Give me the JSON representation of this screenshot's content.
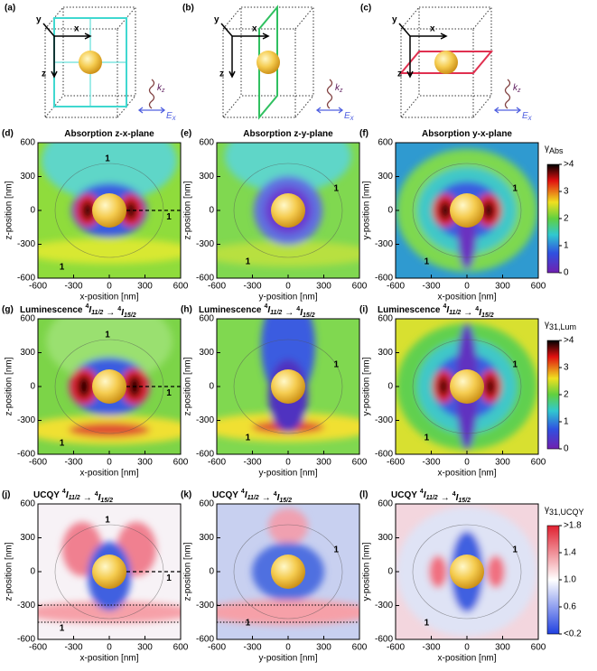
{
  "schematics": [
    {
      "label": "(a)",
      "axis_x": "x",
      "axis_y": "y",
      "axis_z": "z",
      "k": "k",
      "k_sub": "z",
      "e": "E",
      "e_sub": "x"
    },
    {
      "label": "(b)",
      "axis_x": "x",
      "axis_y": "y",
      "axis_z": "z",
      "k": "k",
      "k_sub": "z",
      "e": "E",
      "e_sub": "x"
    },
    {
      "label": "(c)",
      "axis_x": "x",
      "axis_y": "y",
      "axis_z": "z",
      "k": "k",
      "k_sub": "z",
      "e": "E",
      "e_sub": "x"
    }
  ],
  "ticks": [
    "-600",
    "-300",
    "0",
    "300",
    "600"
  ],
  "rows": [
    {
      "colorbar": {
        "symbol": "γ",
        "sub": "Abs",
        "ticks": [
          ">4",
          "3",
          "2",
          "1",
          "0"
        ]
      },
      "panels": [
        {
          "label": "(d)",
          "title": "Absorption z-x-plane",
          "xlabel": "x-position [nm]",
          "ylabel": "z-position [nm]",
          "contours": [
            "1",
            "1",
            "1"
          ]
        },
        {
          "label": "(e)",
          "title": "Absorption z-y-plane",
          "xlabel": "y-position [nm]",
          "ylabel": "z-position [nm]",
          "contours": [
            "1",
            "1"
          ]
        },
        {
          "label": "(f)",
          "title": "Absorption y-x-plane",
          "xlabel": "x-position [nm]",
          "ylabel": "y-position [nm]",
          "contours": [
            "1",
            "1"
          ]
        }
      ]
    },
    {
      "colorbar": {
        "symbol": "γ",
        "sub": "31,Lum",
        "ticks": [
          ">4",
          "3",
          "2",
          "1",
          "0"
        ]
      },
      "panels": [
        {
          "label": "(g)",
          "title": "Luminescence",
          "from": {
            "sup": "4",
            "sym": "I",
            "sub": "11/2"
          },
          "arrow": "→",
          "to": {
            "sup": "4",
            "sym": "I",
            "sub": "15/2"
          },
          "xlabel": "x-position [nm]",
          "ylabel": "z-position [nm]",
          "contours": [
            "1",
            "1",
            "1"
          ]
        },
        {
          "label": "(h)",
          "title": "Luminescence",
          "from": {
            "sup": "4",
            "sym": "I",
            "sub": "11/2"
          },
          "arrow": "→",
          "to": {
            "sup": "4",
            "sym": "I",
            "sub": "15/2"
          },
          "xlabel": "y-position [nm]",
          "ylabel": "z-position [nm]",
          "contours": [
            "1",
            "1"
          ]
        },
        {
          "label": "(i)",
          "title": "Luminescence",
          "from": {
            "sup": "4",
            "sym": "I",
            "sub": "11/2"
          },
          "arrow": "→",
          "to": {
            "sup": "4",
            "sym": "I",
            "sub": "15/2"
          },
          "xlabel": "x-position [nm]",
          "ylabel": "y-position [nm]",
          "contours": [
            "1",
            "1"
          ]
        }
      ]
    },
    {
      "colorbar": {
        "symbol": "γ",
        "sub": "31,UCQY",
        "ticks": [
          ">1.8",
          "1.4",
          "1.0",
          "0.6",
          "<0.2"
        ]
      },
      "panels": [
        {
          "label": "(j)",
          "title": "UCQY",
          "from": {
            "sup": "4",
            "sym": "I",
            "sub": "11/2"
          },
          "arrow": "→",
          "to": {
            "sup": "4",
            "sym": "I",
            "sub": "15/2"
          },
          "xlabel": "x-position [nm]",
          "ylabel": "z-position [nm]",
          "contours": [
            "1",
            "1",
            "1"
          ]
        },
        {
          "label": "(k)",
          "title": "UCQY",
          "from": {
            "sup": "4",
            "sym": "I",
            "sub": "11/2"
          },
          "arrow": "→",
          "to": {
            "sup": "4",
            "sym": "I",
            "sub": "15/2"
          },
          "xlabel": "y-position [nm]",
          "ylabel": "z-position [nm]",
          "contours": [
            "1",
            "1"
          ]
        },
        {
          "label": "(l)",
          "title": "UCQY",
          "from": {
            "sup": "4",
            "sym": "I",
            "sub": "11/2"
          },
          "arrow": "→",
          "to": {
            "sup": "4",
            "sym": "I",
            "sub": "15/2"
          },
          "xlabel": "x-position [nm]",
          "ylabel": "y-position [nm]",
          "contours": [
            "1",
            "1"
          ]
        }
      ]
    }
  ]
}
